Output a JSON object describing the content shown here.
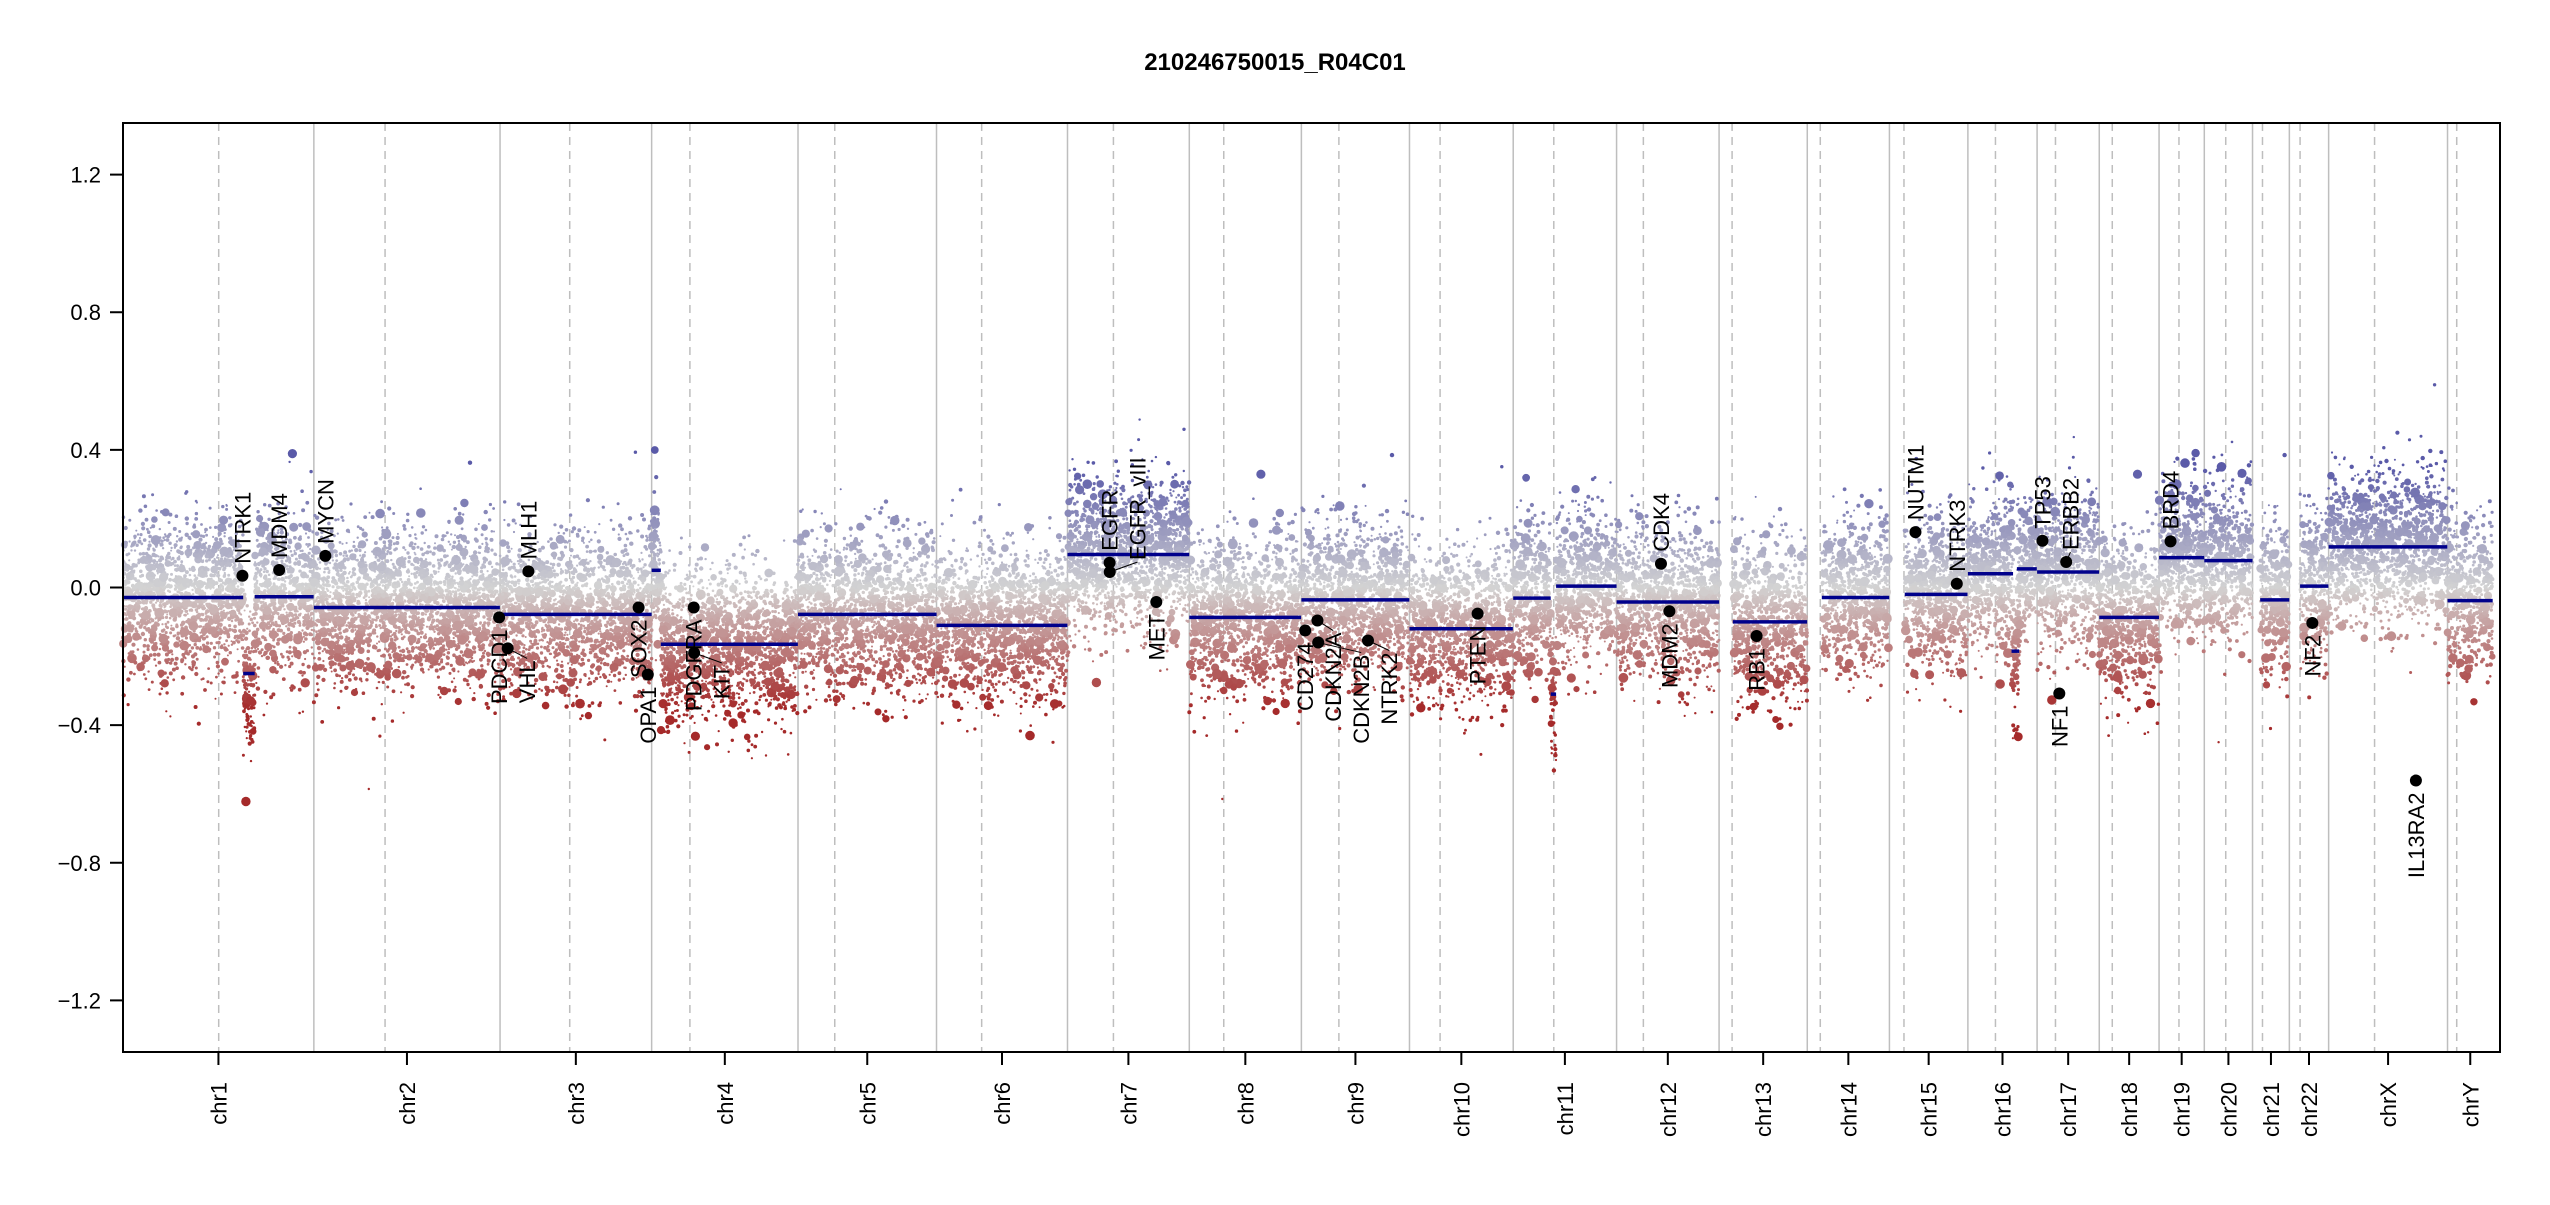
{
  "chart_data": {
    "type": "scatter",
    "title": "210246750015_R04C01",
    "xlabel": "",
    "ylabel": "",
    "ylim": [
      -1.35,
      1.35
    ],
    "yticks": [
      1.2,
      0.8,
      0.4,
      0.0,
      -0.4,
      -0.8,
      -1.2
    ],
    "ytick_labels": [
      "1.2",
      "0.8",
      "0.4",
      "0.0",
      "−0.4",
      "−0.8",
      "−1.2"
    ],
    "grid": false,
    "colors": {
      "segment": "#00008b",
      "gain": "#5a5aa8",
      "loss": "#a52a2a",
      "neutral": "#d3d3d3",
      "gene_point": "#000000",
      "boundary": "#bebebe",
      "centromere": "#bebebe"
    },
    "chromosomes": [
      {
        "name": "chr1",
        "length_mb": 249.3,
        "centromere_mb": 125
      },
      {
        "name": "chr2",
        "length_mb": 243.2,
        "centromere_mb": 93
      },
      {
        "name": "chr3",
        "length_mb": 198.0,
        "centromere_mb": 91
      },
      {
        "name": "chr4",
        "length_mb": 191.2,
        "centromere_mb": 50
      },
      {
        "name": "chr5",
        "length_mb": 180.9,
        "centromere_mb": 48
      },
      {
        "name": "chr6",
        "length_mb": 171.1,
        "centromere_mb": 59
      },
      {
        "name": "chr7",
        "length_mb": 159.1,
        "centromere_mb": 60
      },
      {
        "name": "chr8",
        "length_mb": 146.4,
        "centromere_mb": 45
      },
      {
        "name": "chr9",
        "length_mb": 141.2,
        "centromere_mb": 49
      },
      {
        "name": "chr10",
        "length_mb": 135.5,
        "centromere_mb": 40
      },
      {
        "name": "chr11",
        "length_mb": 135.0,
        "centromere_mb": 53
      },
      {
        "name": "chr12",
        "length_mb": 133.9,
        "centromere_mb": 35
      },
      {
        "name": "chr13",
        "length_mb": 115.2,
        "centromere_mb": 17
      },
      {
        "name": "chr14",
        "length_mb": 107.3,
        "centromere_mb": 17
      },
      {
        "name": "chr15",
        "length_mb": 102.5,
        "centromere_mb": 19
      },
      {
        "name": "chr16",
        "length_mb": 90.4,
        "centromere_mb": 36
      },
      {
        "name": "chr17",
        "length_mb": 81.2,
        "centromere_mb": 24
      },
      {
        "name": "chr18",
        "length_mb": 78.1,
        "centromere_mb": 17
      },
      {
        "name": "chr19",
        "length_mb": 59.1,
        "centromere_mb": 26
      },
      {
        "name": "chr20",
        "length_mb": 63.0,
        "centromere_mb": 28
      },
      {
        "name": "chr21",
        "length_mb": 48.1,
        "centromere_mb": 13
      },
      {
        "name": "chr22",
        "length_mb": 51.3,
        "centromere_mb": 14
      },
      {
        "name": "chrX",
        "length_mb": 155.3,
        "centromere_mb": 60
      },
      {
        "name": "chrY",
        "length_mb": 59.4,
        "centromere_mb": 12
      }
    ],
    "segments": [
      {
        "chr": "chr1",
        "start": 0,
        "end": 157,
        "value": -0.029
      },
      {
        "chr": "chr1",
        "start": 157,
        "end": 172,
        "value": -0.25
      },
      {
        "chr": "chr1",
        "start": 172,
        "end": 249,
        "value": -0.027
      },
      {
        "chr": "chr2",
        "start": 0,
        "end": 243,
        "value": -0.058
      },
      {
        "chr": "chr3",
        "start": 0,
        "end": 198,
        "value": -0.078
      },
      {
        "chr": "chr4",
        "start": 0,
        "end": 12,
        "value": 0.05
      },
      {
        "chr": "chr4",
        "start": 12,
        "end": 191,
        "value": -0.165
      },
      {
        "chr": "chr5",
        "start": 0,
        "end": 181,
        "value": -0.078
      },
      {
        "chr": "chr6",
        "start": 0,
        "end": 171,
        "value": -0.11
      },
      {
        "chr": "chr7",
        "start": 0,
        "end": 159,
        "value": 0.096
      },
      {
        "chr": "chr8",
        "start": 0,
        "end": 146,
        "value": -0.087
      },
      {
        "chr": "chr9",
        "start": 0,
        "end": 141,
        "value": -0.036
      },
      {
        "chr": "chr10",
        "start": 0,
        "end": 135,
        "value": -0.12
      },
      {
        "chr": "chr11",
        "start": 0,
        "end": 49,
        "value": -0.031
      },
      {
        "chr": "chr11",
        "start": 49,
        "end": 56,
        "value": -0.31
      },
      {
        "chr": "chr11",
        "start": 56,
        "end": 135,
        "value": 0.004
      },
      {
        "chr": "chr12",
        "start": 0,
        "end": 134,
        "value": -0.042
      },
      {
        "chr": "chr13",
        "start": 18,
        "end": 115,
        "value": -0.1
      },
      {
        "chr": "chr14",
        "start": 19,
        "end": 107,
        "value": -0.029
      },
      {
        "chr": "chr15",
        "start": 20,
        "end": 102,
        "value": -0.02
      },
      {
        "chr": "chr16",
        "start": 0,
        "end": 59,
        "value": 0.04
      },
      {
        "chr": "chr16",
        "start": 57,
        "end": 67,
        "value": -0.185
      },
      {
        "chr": "chr16",
        "start": 64,
        "end": 90,
        "value": 0.054
      },
      {
        "chr": "chr17",
        "start": 0,
        "end": 81,
        "value": 0.045
      },
      {
        "chr": "chr18",
        "start": 0,
        "end": 78,
        "value": -0.087
      },
      {
        "chr": "chr19",
        "start": 0,
        "end": 59,
        "value": 0.087
      },
      {
        "chr": "chr20",
        "start": 0,
        "end": 63,
        "value": 0.078
      },
      {
        "chr": "chr21",
        "start": 10,
        "end": 48,
        "value": -0.036
      },
      {
        "chr": "chr22",
        "start": 14,
        "end": 51,
        "value": 0.004
      },
      {
        "chr": "chrX",
        "start": 0,
        "end": 155,
        "value": 0.118
      },
      {
        "chr": "chrY",
        "start": 0,
        "end": 59,
        "value": -0.038
      }
    ],
    "genes": [
      {
        "name": "NTRK1",
        "chr": "chr1",
        "pos": 156,
        "value": 0.034
      },
      {
        "name": "MDM4",
        "chr": "chr1",
        "pos": 204,
        "value": 0.051
      },
      {
        "name": "MYCN",
        "chr": "chr2",
        "pos": 15,
        "value": 0.092
      },
      {
        "name": "PDCD1",
        "chr": "chr2",
        "pos": 242,
        "value": -0.087
      },
      {
        "name": "VHL",
        "chr": "chr3",
        "pos": 10,
        "value": -0.177
      },
      {
        "name": "MLH1",
        "chr": "chr3",
        "pos": 37,
        "value": 0.047
      },
      {
        "name": "SOX2",
        "chr": "chr3",
        "pos": 181,
        "value": -0.058
      },
      {
        "name": "OPA1",
        "chr": "chr3",
        "pos": 193,
        "value": -0.253
      },
      {
        "name": "PDGFRA",
        "chr": "chr4",
        "pos": 55,
        "value": -0.058
      },
      {
        "name": "KIT",
        "chr": "chr4",
        "pos": 55.5,
        "value": -0.19
      },
      {
        "name": "EGFR",
        "chr": "chr7",
        "pos": 55,
        "value": 0.072
      },
      {
        "name": "EGFR_vIII",
        "chr": "chr7",
        "pos": 55.2,
        "value": 0.045
      },
      {
        "name": "MET",
        "chr": "chr7",
        "pos": 116,
        "value": -0.042
      },
      {
        "name": "CD274",
        "chr": "chr9",
        "pos": 5,
        "value": -0.125
      },
      {
        "name": "CDKN2A",
        "chr": "chr9",
        "pos": 21,
        "value": -0.096
      },
      {
        "name": "CDKN2B",
        "chr": "chr9",
        "pos": 22,
        "value": -0.16
      },
      {
        "name": "NTRK2",
        "chr": "chr9",
        "pos": 87,
        "value": -0.154
      },
      {
        "name": "PTEN",
        "chr": "chr10",
        "pos": 89,
        "value": -0.076
      },
      {
        "name": "CDK4",
        "chr": "chr12",
        "pos": 58,
        "value": 0.069
      },
      {
        "name": "MDM2",
        "chr": "chr12",
        "pos": 69,
        "value": -0.069
      },
      {
        "name": "RB1",
        "chr": "chr13",
        "pos": 49,
        "value": -0.141
      },
      {
        "name": "NUTM1",
        "chr": "chr15",
        "pos": 34,
        "value": 0.161
      },
      {
        "name": "NTRK3",
        "chr": "chr15",
        "pos": 88,
        "value": 0.011
      },
      {
        "name": "TP53",
        "chr": "chr17",
        "pos": 7,
        "value": 0.136
      },
      {
        "name": "NF1",
        "chr": "chr17",
        "pos": 29,
        "value": -0.308
      },
      {
        "name": "ERBB2",
        "chr": "chr17",
        "pos": 38,
        "value": 0.074
      },
      {
        "name": "BRD4",
        "chr": "chr19",
        "pos": 15,
        "value": 0.134
      },
      {
        "name": "NF2",
        "chr": "chr22",
        "pos": 30,
        "value": -0.103
      },
      {
        "name": "IL13RA2",
        "chr": "chrX",
        "pos": 114,
        "value": -0.561
      }
    ]
  }
}
